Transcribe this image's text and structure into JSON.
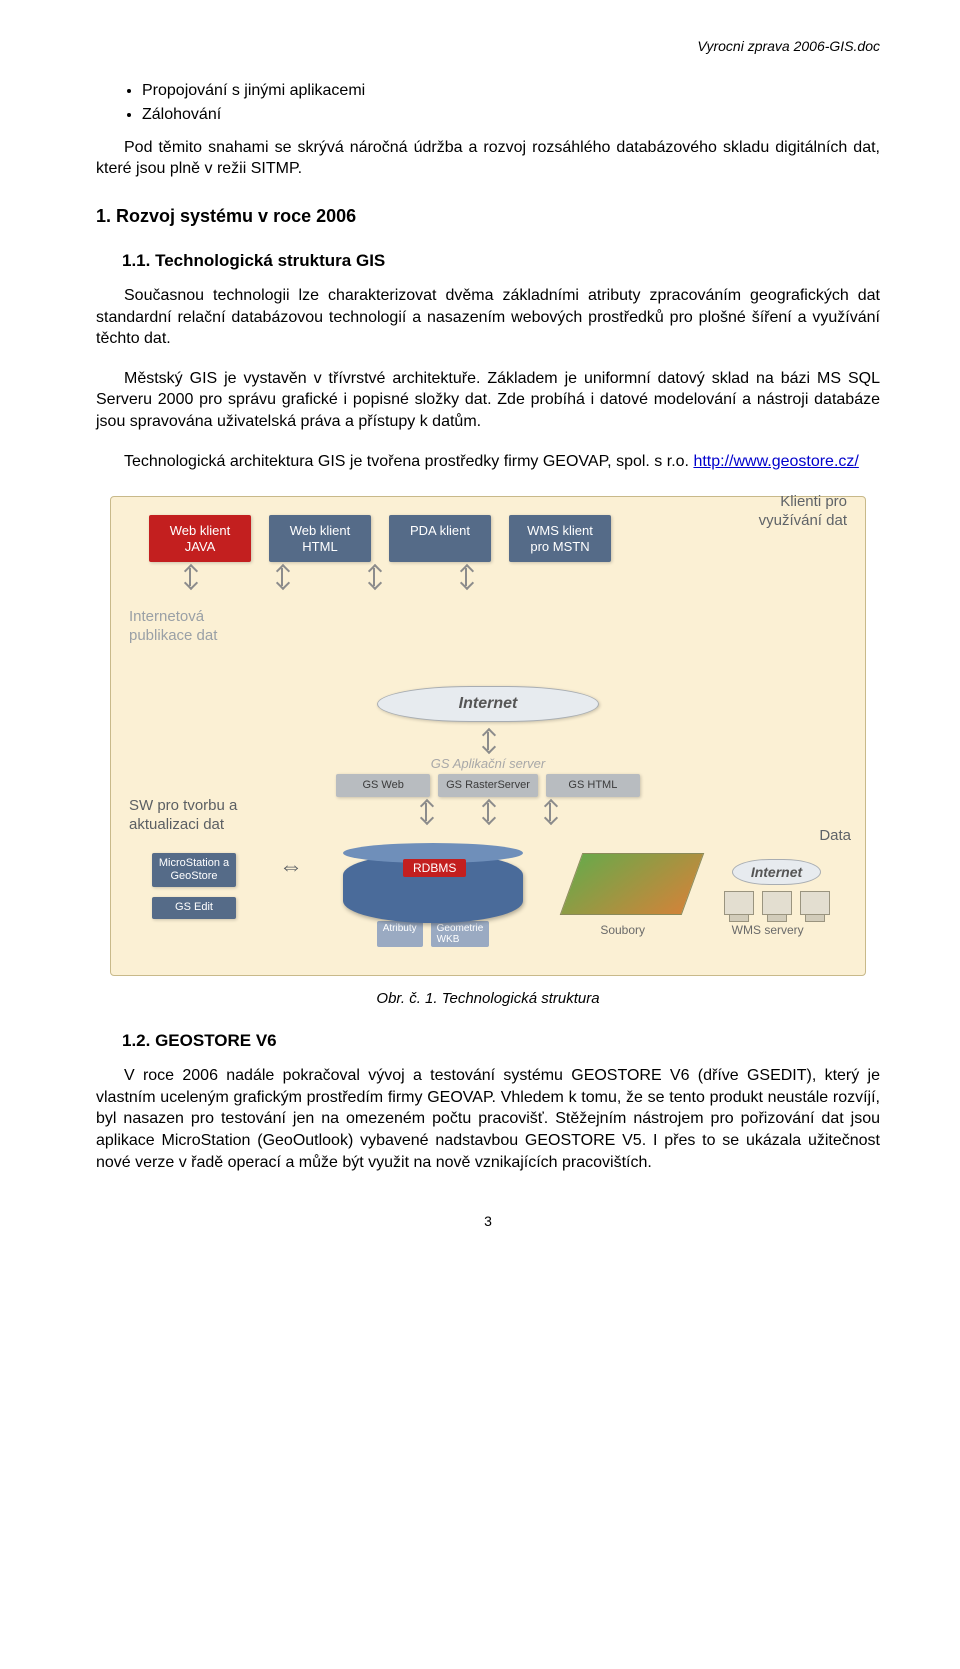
{
  "doc": {
    "header_right": "Vyrocni zprava 2006-GIS.doc",
    "page_number": "3"
  },
  "bullets": {
    "b1": "Propojování s jinými aplikacemi",
    "b2": "Zálohování"
  },
  "p_intro": "Pod těmito snahami se skrývá náročná údržba a rozvoj rozsáhlého databázového skladu digitálních dat, které jsou plně v režii SITMP.",
  "h1_1": "1. Rozvoj systému v roce 2006",
  "h2_11": "1.1. Technologická struktura GIS",
  "p11a": "Současnou technologii lze charakterizovat dvěma základními atributy zpracováním geografických dat standardní relační databázovou technologií a nasazením webových prostředků pro plošné šíření a využívání těchto dat.",
  "p11b": "Městský GIS je vystavěn v třívrstvé architektuře. Základem je uniformní datový sklad na bázi MS SQL Serveru 2000 pro správu grafické i popisné složky dat. Zde probíhá i datové modelování a nástroji databáze jsou spravována uživatelská práva a přístupy k datům.",
  "p11c_pre": "Technologická architektura GIS je tvořena prostředky firmy GEOVAP, spol. s r.o. ",
  "p11c_link_text": "http://www.geostore.cz/",
  "figure": {
    "caption": "Obr. č. 1.     Technologická struktura",
    "top_right_label": "Klienti pro\nvyužívání dat",
    "tiles": {
      "java": "Web klient\nJAVA",
      "html": "Web klient\nHTML",
      "pda": "PDA klient",
      "wms_client": "WMS klient\npro MSTN"
    },
    "internet_label": "Internetová\npublikace dat",
    "cloud_internet": "Internet",
    "app_server": "GS Aplikační server",
    "sub": {
      "gsweb": "GS Web",
      "gsraster": "GS RasterServer",
      "gshtml": "GS HTML"
    },
    "sw_label": "SW pro tvorbu a\naktualizaci dat",
    "data_label": "Data",
    "sw": {
      "ms": "MicroStation a\nGeoStore",
      "gsedit": "GS Edit"
    },
    "rdbms": "RDBMS",
    "db_sub": {
      "attr": "Atributy",
      "geom": "Geometrie\nWKB"
    },
    "soubory": "Soubory",
    "wms_serv": "WMS servery"
  },
  "h2_12": "1.2. GEOSTORE V6",
  "p12": "V roce 2006 nadále pokračoval vývoj a testování systému GEOSTORE V6 (dříve GSEDIT), který je vlastním uceleným grafickým prostředím firmy GEOVAP. Vhledem  k tomu, že se tento produkt neustále rozvíjí, byl nasazen pro testování jen na omezeném počtu pracovišť. Stěžejním nástrojem pro pořizování dat jsou aplikace MicroStation (GeoOutlook) vybavené nadstavbou GEOSTORE V5. I přes to se ukázala užitečnost nové verze v řadě operací a může být využit na nově vznikajících pracovištích.",
  "colors": {
    "page_bg": "#ffffff",
    "text": "#000000",
    "link": "#0000cc",
    "fig_bg": "#fbf0d4",
    "fig_border": "#c8b98a",
    "tile_red": "#c31f1f",
    "tile_blue": "#556b88",
    "tile_gray": "#b8bcc0",
    "cloud_bg": "#e7ebef",
    "rdbms_bg": "#4a6b9a",
    "side_text": "#9aa0a6"
  }
}
